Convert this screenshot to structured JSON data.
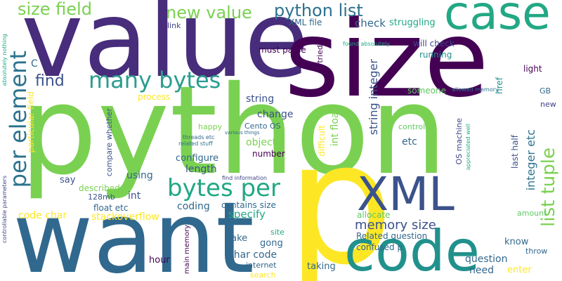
{
  "palette": {
    "yellow": "#fde725",
    "green": "#7ad151",
    "green2": "#5ec962",
    "teal": "#22a884",
    "teal2": "#2a9d8f",
    "cyan": "#21918c",
    "blue": "#2c728e",
    "blue2": "#31688e",
    "navy": "#3b528b",
    "indigo": "#414487",
    "purple": "#472d7b",
    "dark": "#440154"
  },
  "words": {
    "python": "python",
    "value": "value",
    "size": "size",
    "want": "want",
    "p": "p",
    "code": "code",
    "case": "case",
    "xml": "XML",
    "bytes_per": "bytes per",
    "many_bytes": "many bytes",
    "per_element": "per element",
    "python_list": "python list",
    "size_field": "size field",
    "new_value": "new value",
    "list_tuple": "list tuple",
    "memory_size": "memory size",
    "find": "find",
    "string_integer": "string integer",
    "integer_etc": "integer etc",
    "check": "check",
    "struggling": "struggling",
    "xml_file": "XML file",
    "link": "link",
    "will_check": "will check",
    "running": "running",
    "must_parse": "must parse",
    "tried": "tried",
    "found_absolutely": "found absolutely",
    "c": "C",
    "string": "string",
    "href": "href",
    "light": "light",
    "someone": "someone",
    "allowed_memory": "allowed memory",
    "gb": "GB",
    "new": "new",
    "process": "process",
    "change": "change",
    "int_float": "int float",
    "cento_os": "Cento OS",
    "compare_whether": "compare whether",
    "happy": "happy",
    "control": "control",
    "os_machine": "OS machine",
    "appreciated_well": "appreciated well",
    "last_half": "last half",
    "threads_etc": "threads etc",
    "various_things": "various things",
    "related_stuff": "related stuff",
    "objects": "objects",
    "etc": "etc",
    "difficult": "difficult",
    "particular_field": "particular field",
    "absolutely_nothing": "absolutely nothing",
    "configure": "configure",
    "number": "number",
    "length": "length",
    "using": "using",
    "find_information": "find information",
    "say": "say",
    "described": "described",
    "mb128": "128mb",
    "int": "int",
    "float_etc": "float etc",
    "coding": "coding",
    "contains_size": "contains size",
    "code_char": "code char",
    "stackoverflow": "stackoverflow",
    "specify": "specify",
    "allocate": "allocate",
    "amount": "amount",
    "related_question": "Related question",
    "confused_p": "confused p",
    "know": "know",
    "throw": "throw",
    "controllable_parameters": "controllable parameters",
    "main_memory": "main memory",
    "site": "site",
    "take": "take",
    "gong": "gong",
    "char_code": "char code",
    "question": "question",
    "need": "need",
    "enter": "enter",
    "hour": "hour",
    "internet": "internet",
    "taking": "taking",
    "search": "search"
  }
}
